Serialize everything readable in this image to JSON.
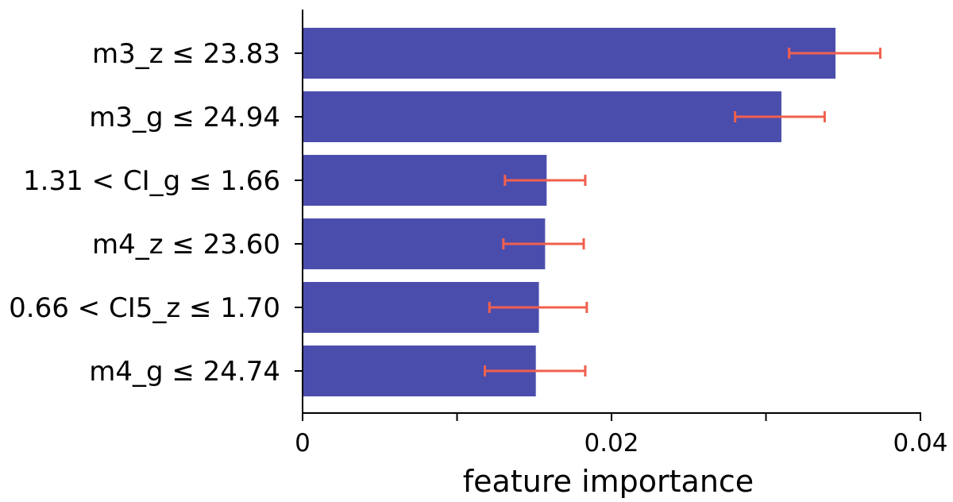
{
  "chart_data": {
    "type": "bar",
    "orientation": "horizontal",
    "title": "",
    "xlabel": "feature importance",
    "ylabel": "",
    "xlim": [
      0,
      0.04
    ],
    "xticks": [
      0,
      0.01,
      0.02,
      0.03,
      0.04
    ],
    "xtick_labels": [
      "0",
      "",
      "0.02",
      "",
      "0.04"
    ],
    "grid": false,
    "legend": "none",
    "categories": [
      "m3_z ≤ 23.83",
      "m3_g ≤ 24.94",
      "1.31 < CI_g ≤ 1.66",
      "m4_z ≤ 23.60",
      "0.66 < CI5_z ≤ 1.70",
      "m4_g ≤ 24.74"
    ],
    "values": [
      0.0345,
      0.031,
      0.0158,
      0.0157,
      0.0153,
      0.0151
    ],
    "error_low": [
      0.0315,
      0.028,
      0.0131,
      0.013,
      0.0121,
      0.0118
    ],
    "error_high": [
      0.0374,
      0.0338,
      0.0183,
      0.0182,
      0.0184,
      0.0183
    ],
    "colors": {
      "bar": "#4b4dad",
      "error": "#f0604d",
      "axis": "#000000"
    }
  }
}
